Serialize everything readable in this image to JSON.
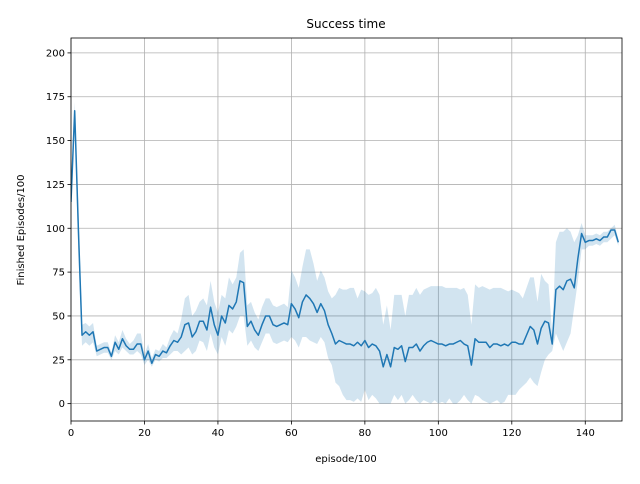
{
  "chart_data": {
    "type": "line",
    "title": "Success time",
    "xlabel": "episode/100",
    "ylabel": "Finished Episodes/100",
    "x": [
      0,
      1,
      2,
      3,
      4,
      5,
      6,
      7,
      8,
      9,
      10,
      11,
      12,
      13,
      14,
      15,
      16,
      17,
      18,
      19,
      20,
      21,
      22,
      23,
      24,
      25,
      26,
      27,
      28,
      29,
      30,
      31,
      32,
      33,
      34,
      35,
      36,
      37,
      38,
      39,
      40,
      41,
      42,
      43,
      44,
      45,
      46,
      47,
      48,
      49,
      50,
      51,
      52,
      53,
      54,
      55,
      56,
      57,
      58,
      59,
      60,
      61,
      62,
      63,
      64,
      65,
      66,
      67,
      68,
      69,
      70,
      71,
      72,
      73,
      74,
      75,
      76,
      77,
      78,
      79,
      80,
      81,
      82,
      83,
      84,
      85,
      86,
      87,
      88,
      89,
      90,
      91,
      92,
      93,
      94,
      95,
      96,
      97,
      98,
      99,
      100,
      101,
      102,
      103,
      104,
      105,
      106,
      107,
      108,
      109,
      110,
      111,
      112,
      113,
      114,
      115,
      116,
      117,
      118,
      119,
      120,
      121,
      122,
      123,
      124,
      125,
      126,
      127,
      128,
      129,
      130,
      131,
      132,
      133,
      134,
      135,
      136,
      137,
      138,
      139,
      140,
      141,
      142,
      143,
      144,
      145,
      146,
      147,
      148,
      149
    ],
    "series": [
      {
        "color": "#1f77b4",
        "values": [
          115,
          167,
          100,
          39,
          41,
          39,
          41,
          30,
          31,
          32,
          32,
          27,
          35,
          31,
          37,
          33,
          31,
          31,
          34,
          34,
          25,
          30,
          23,
          28,
          27,
          30,
          29,
          33,
          36,
          35,
          38,
          45,
          46,
          38,
          41,
          47,
          47,
          42,
          55,
          45,
          39,
          50,
          46,
          56,
          54,
          58,
          70,
          69,
          44,
          47,
          42,
          39,
          45,
          50,
          50,
          45,
          44,
          45,
          46,
          45,
          57,
          54,
          49,
          58,
          62,
          60,
          57,
          52,
          57,
          53,
          45,
          40,
          34,
          36,
          35,
          34,
          34,
          33,
          35,
          33,
          36,
          32,
          34,
          33,
          30,
          21,
          28,
          21,
          32,
          31,
          33,
          24,
          32,
          32,
          34,
          30,
          33,
          35,
          36,
          35,
          34,
          34,
          33,
          34,
          34,
          35,
          36,
          34,
          33,
          22,
          37,
          35,
          35,
          35,
          32,
          34,
          34,
          33,
          34,
          33,
          35,
          35,
          34,
          34,
          39,
          44,
          42,
          34,
          43,
          47,
          46,
          34,
          65,
          67,
          65,
          70,
          71,
          66,
          83,
          97,
          92,
          93,
          93,
          94,
          93,
          95,
          95,
          99,
          99,
          92
        ]
      }
    ],
    "band": {
      "color": "#1f77b4",
      "opacity": 0.2,
      "lower": [
        110,
        160,
        85,
        33,
        35,
        33,
        35,
        27,
        28,
        29,
        29,
        25,
        30,
        28,
        32,
        30,
        28,
        28,
        30,
        28,
        22,
        25,
        21,
        25,
        24,
        26,
        26,
        28,
        30,
        30,
        28,
        30,
        32,
        28,
        30,
        36,
        35,
        30,
        40,
        32,
        28,
        38,
        33,
        42,
        40,
        44,
        50,
        50,
        33,
        36,
        32,
        30,
        35,
        40,
        40,
        35,
        34,
        35,
        36,
        35,
        38,
        36,
        32,
        38,
        38,
        36,
        35,
        34,
        38,
        35,
        26,
        22,
        12,
        10,
        5,
        2,
        2,
        1,
        3,
        1,
        8,
        2,
        5,
        3,
        0,
        0,
        0,
        0,
        5,
        2,
        5,
        0,
        2,
        5,
        2,
        0,
        2,
        1,
        0,
        2,
        0,
        1,
        0,
        3,
        0,
        0,
        2,
        5,
        2,
        0,
        5,
        4,
        2,
        1,
        0,
        1,
        2,
        0,
        1,
        5,
        5,
        5,
        8,
        10,
        12,
        15,
        12,
        10,
        18,
        25,
        28,
        30,
        40,
        35,
        30,
        35,
        40,
        55,
        70,
        88,
        88,
        90,
        90,
        91,
        90,
        92,
        92,
        94,
        96,
        90
      ],
      "upper": [
        120,
        172,
        112,
        45,
        46,
        44,
        46,
        33,
        34,
        35,
        35,
        29,
        39,
        35,
        42,
        37,
        34,
        36,
        40,
        40,
        28,
        34,
        26,
        31,
        30,
        34,
        32,
        38,
        42,
        40,
        48,
        60,
        62,
        50,
        53,
        58,
        60,
        56,
        70,
        58,
        52,
        62,
        60,
        72,
        68,
        72,
        86,
        88,
        56,
        58,
        52,
        48,
        55,
        60,
        60,
        56,
        55,
        56,
        57,
        55,
        76,
        72,
        66,
        78,
        88,
        88,
        80,
        70,
        76,
        72,
        64,
        60,
        62,
        66,
        65,
        65,
        66,
        66,
        60,
        65,
        64,
        62,
        63,
        66,
        62,
        45,
        56,
        42,
        62,
        62,
        62,
        50,
        62,
        62,
        66,
        62,
        65,
        66,
        67,
        67,
        67,
        67,
        66,
        66,
        66,
        66,
        65,
        66,
        62,
        45,
        68,
        66,
        67,
        66,
        65,
        66,
        66,
        66,
        65,
        64,
        65,
        64,
        63,
        60,
        66,
        72,
        72,
        58,
        74,
        70,
        68,
        40,
        92,
        98,
        98,
        100,
        98,
        92,
        96,
        103,
        96,
        96,
        96,
        97,
        96,
        98,
        98,
        100,
        102,
        94
      ]
    },
    "xlim": [
      0,
      150
    ],
    "ylim": [
      -9.9,
      208.5
    ],
    "xticks": [
      0,
      20,
      40,
      60,
      80,
      100,
      120,
      140
    ],
    "yticks": [
      0,
      25,
      50,
      75,
      100,
      125,
      150,
      175,
      200
    ],
    "grid": true
  }
}
